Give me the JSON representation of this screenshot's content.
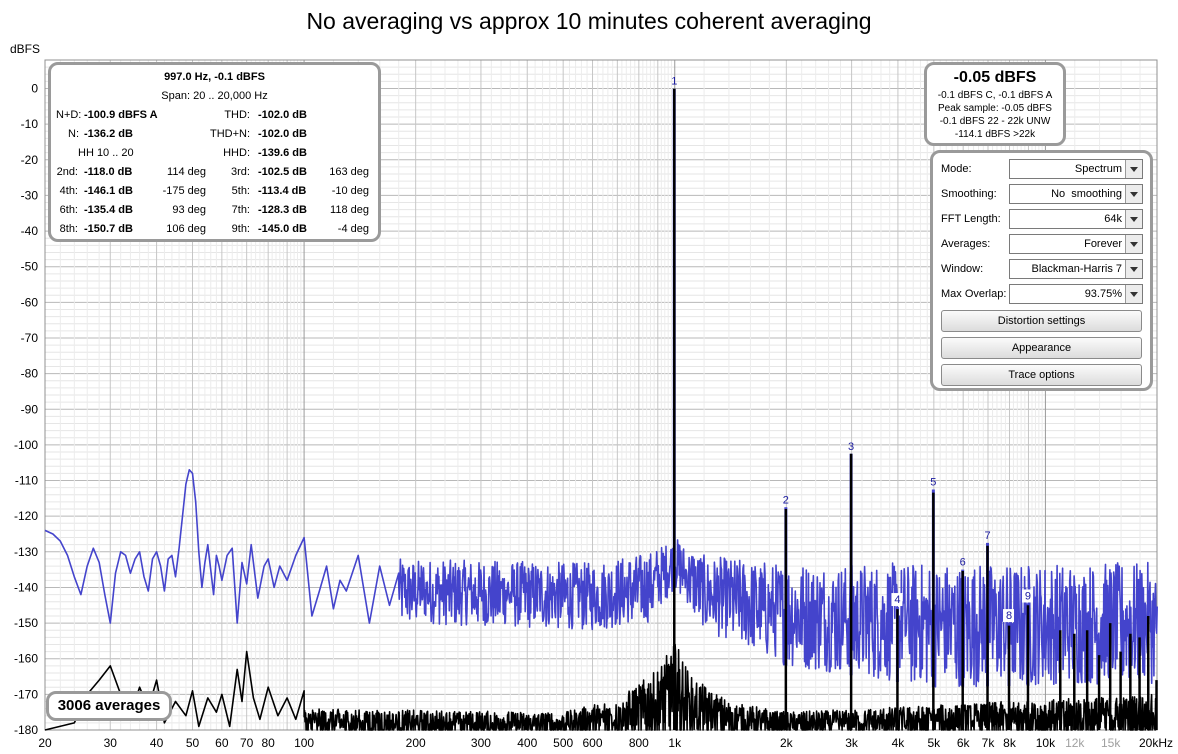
{
  "title": "No averaging vs approx 10 minutes coherent averaging",
  "y_unit": "dBFS",
  "stats": {
    "header1": "997.0 Hz, -0.1 dBFS",
    "header2": "Span: 20 .. 20,000 Hz",
    "nd_label": "N+D:",
    "nd_value": "-100.9 dBFS A",
    "thd_label": "THD:",
    "thd_value": "-102.0 dB",
    "n_label": "N:",
    "n_value": "-136.2 dB",
    "thdn_label": "THD+N:",
    "thdn_value": "-102.0 dB",
    "hh_label": "HH 10 .. 20",
    "hhd_label": "HHD:",
    "hhd_value": "-139.6 dB",
    "harmonics": [
      {
        "label": "2nd:",
        "value": "-118.0 dB",
        "phase": "114 deg"
      },
      {
        "label": "3rd:",
        "value": "-102.5 dB",
        "phase": "163 deg"
      },
      {
        "label": "4th:",
        "value": "-146.1 dB",
        "phase": "-175 deg"
      },
      {
        "label": "5th:",
        "value": "-113.4 dB",
        "phase": "-10 deg"
      },
      {
        "label": "6th:",
        "value": "-135.4 dB",
        "phase": "93 deg"
      },
      {
        "label": "7th:",
        "value": "-128.3 dB",
        "phase": "118 deg"
      },
      {
        "label": "8th:",
        "value": "-150.7 dB",
        "phase": "106 deg"
      },
      {
        "label": "9th:",
        "value": "-145.0 dB",
        "phase": "-4 deg"
      }
    ]
  },
  "peak": {
    "value": "-0.05 dBFS",
    "line1": "-0.1 dBFS C, -0.1 dBFS A",
    "line2": "Peak sample: -0.05 dBFS",
    "line3": "-0.1 dBFS 22 - 22k UNW",
    "line4": "-114.1 dBFS >22k"
  },
  "controls": {
    "mode": {
      "label": "Mode:",
      "value": "Spectrum"
    },
    "smoothing": {
      "label": "Smoothing:",
      "value": "No  smoothing"
    },
    "fft_length": {
      "label": "FFT Length:",
      "value": "64k"
    },
    "averages": {
      "label": "Averages:",
      "value": "Forever"
    },
    "window": {
      "label": "Window:",
      "value": "Blackman-Harris 7"
    },
    "max_overlap": {
      "label": "Max Overlap:",
      "value": "93.75%"
    },
    "distortion_button": "Distortion settings",
    "appearance_button": "Appearance",
    "trace_button": "Trace options"
  },
  "averages_badge": "3006 averages",
  "colors": {
    "no_averaging_trace": "#4444cc",
    "averaged_trace": "#000000",
    "harmonic_label": "#1a1aa0",
    "grid_minor": "#e4e4e4",
    "grid_major": "#a0a0a0"
  },
  "chart_data": {
    "type": "line",
    "title": "No averaging vs approx 10 minutes coherent averaging",
    "xlabel": "",
    "ylabel": "dBFS",
    "x_scale": "log",
    "xlim": [
      20,
      20000
    ],
    "ylim": [
      -180,
      8
    ],
    "x_ticks": [
      {
        "v": 20,
        "l": "20"
      },
      {
        "v": 30,
        "l": "30"
      },
      {
        "v": 40,
        "l": "40"
      },
      {
        "v": 50,
        "l": "50"
      },
      {
        "v": 60,
        "l": "60"
      },
      {
        "v": 70,
        "l": "70"
      },
      {
        "v": 80,
        "l": "80"
      },
      {
        "v": 100,
        "l": "100"
      },
      {
        "v": 200,
        "l": "200"
      },
      {
        "v": 300,
        "l": "300"
      },
      {
        "v": 400,
        "l": "400"
      },
      {
        "v": 500,
        "l": "500"
      },
      {
        "v": 600,
        "l": "600"
      },
      {
        "v": 800,
        "l": "800"
      },
      {
        "v": 1000,
        "l": "1k"
      },
      {
        "v": 2000,
        "l": "2k"
      },
      {
        "v": 3000,
        "l": "3k"
      },
      {
        "v": 4000,
        "l": "4k"
      },
      {
        "v": 5000,
        "l": "5k"
      },
      {
        "v": 6000,
        "l": "6k"
      },
      {
        "v": 7000,
        "l": "7k"
      },
      {
        "v": 8000,
        "l": "8k"
      },
      {
        "v": 10000,
        "l": "10k"
      },
      {
        "v": 12000,
        "l": "12k"
      },
      {
        "v": 15000,
        "l": "15k"
      },
      {
        "v": 20000,
        "l": "20kHz"
      }
    ],
    "grey_x_ticks": [
      12000,
      15000
    ],
    "y_ticks": [
      0,
      -10,
      -20,
      -30,
      -40,
      -50,
      -60,
      -70,
      -80,
      -90,
      -100,
      -110,
      -120,
      -130,
      -140,
      -150,
      -160,
      -170,
      -180
    ],
    "grid": true,
    "series": [
      {
        "role": "no_averaging",
        "low_freq_points": [
          [
            20,
            -124
          ],
          [
            21,
            -125
          ],
          [
            22,
            -127
          ],
          [
            23,
            -131
          ],
          [
            24,
            -137
          ],
          [
            25,
            -142
          ],
          [
            26,
            -134
          ],
          [
            27,
            -129
          ],
          [
            28,
            -133
          ],
          [
            29,
            -142
          ],
          [
            30,
            -150
          ],
          [
            31,
            -136
          ],
          [
            32,
            -130
          ],
          [
            33,
            -131
          ],
          [
            34,
            -136
          ],
          [
            35,
            -132
          ],
          [
            36,
            -130
          ],
          [
            37,
            -137
          ],
          [
            38,
            -141
          ],
          [
            39,
            -132
          ],
          [
            40,
            -130
          ],
          [
            41,
            -134
          ],
          [
            42,
            -141
          ],
          [
            43,
            -132
          ],
          [
            44,
            -131
          ],
          [
            45,
            -137
          ],
          [
            46,
            -129
          ],
          [
            47,
            -120
          ],
          [
            48,
            -111
          ],
          [
            49,
            -107
          ],
          [
            50,
            -108
          ],
          [
            51,
            -116
          ],
          [
            52,
            -130
          ],
          [
            53,
            -140
          ],
          [
            54,
            -133
          ],
          [
            55,
            -128
          ],
          [
            56,
            -135
          ],
          [
            57,
            -142
          ],
          [
            58,
            -131
          ],
          [
            59,
            -134
          ],
          [
            60,
            -138
          ],
          [
            62,
            -131
          ],
          [
            64,
            -129
          ],
          [
            66,
            -150
          ],
          [
            68,
            -133
          ],
          [
            70,
            -139
          ],
          [
            72,
            -128
          ],
          [
            75,
            -143
          ],
          [
            78,
            -134
          ],
          [
            80,
            -132
          ],
          [
            83,
            -140
          ],
          [
            86,
            -134
          ],
          [
            90,
            -138
          ],
          [
            95,
            -131
          ],
          [
            100,
            -126
          ],
          [
            105,
            -148
          ],
          [
            110,
            -141
          ],
          [
            115,
            -134
          ],
          [
            120,
            -146
          ],
          [
            125,
            -138
          ],
          [
            130,
            -141
          ],
          [
            140,
            -131
          ],
          [
            150,
            -150
          ],
          [
            160,
            -134
          ],
          [
            170,
            -145
          ],
          [
            180,
            -136
          ]
        ],
        "noise_upper": [
          [
            180,
            -132
          ],
          [
            600,
            -133
          ],
          [
            850,
            -130
          ],
          [
            1000,
            -126
          ],
          [
            1200,
            -131
          ],
          [
            2000,
            -133
          ],
          [
            5000,
            -133
          ],
          [
            20000,
            -133
          ]
        ],
        "noise_lower": [
          [
            180,
            -150
          ],
          [
            600,
            -152
          ],
          [
            850,
            -150
          ],
          [
            1000,
            -140
          ],
          [
            1200,
            -152
          ],
          [
            2000,
            -162
          ],
          [
            5000,
            -168
          ],
          [
            20000,
            -167
          ]
        ],
        "peaks": [
          [
            997,
            -0.1
          ],
          [
            1994,
            -117.5
          ],
          [
            2991,
            -102.5
          ],
          [
            3988,
            -145.5
          ],
          [
            4985,
            -112.5
          ],
          [
            5982,
            -135.0
          ],
          [
            6979,
            -127.5
          ],
          [
            7976,
            -150.0
          ],
          [
            8973,
            -144.5
          ]
        ]
      },
      {
        "role": "averaged",
        "low_freq_points": [
          [
            20,
            -182
          ],
          [
            24,
            -178
          ],
          [
            26,
            -170
          ],
          [
            28,
            -166
          ],
          [
            30,
            -162
          ],
          [
            32,
            -170
          ],
          [
            34,
            -176
          ],
          [
            36,
            -168
          ],
          [
            38,
            -174
          ],
          [
            40,
            -166
          ],
          [
            42,
            -178
          ],
          [
            45,
            -172
          ],
          [
            48,
            -176
          ],
          [
            50,
            -169
          ],
          [
            52,
            -179
          ],
          [
            55,
            -171
          ],
          [
            58,
            -175
          ],
          [
            60,
            -170
          ],
          [
            63,
            -179
          ],
          [
            66,
            -163
          ],
          [
            68,
            -172
          ],
          [
            70,
            -158
          ],
          [
            73,
            -171
          ],
          [
            76,
            -177
          ],
          [
            80,
            -168
          ],
          [
            85,
            -176
          ],
          [
            90,
            -171
          ],
          [
            95,
            -177
          ],
          [
            100,
            -169
          ]
        ],
        "noise_upper": [
          [
            100,
            -174
          ],
          [
            500,
            -175
          ],
          [
            700,
            -171
          ],
          [
            900,
            -163
          ],
          [
            1000,
            -155
          ],
          [
            1100,
            -165
          ],
          [
            1400,
            -172
          ],
          [
            2000,
            -175
          ],
          [
            5000,
            -173
          ],
          [
            20000,
            -170
          ]
        ],
        "noise_lower": [
          [
            100,
            -182
          ],
          [
            20000,
            -182
          ]
        ],
        "peaks": [
          [
            997,
            -0.05
          ],
          [
            1994,
            -118.0
          ],
          [
            2991,
            -102.5
          ],
          [
            3988,
            -146.1
          ],
          [
            4985,
            -113.4
          ],
          [
            5982,
            -135.4
          ],
          [
            6979,
            -128.3
          ],
          [
            7976,
            -150.7
          ],
          [
            8973,
            -145.0
          ],
          [
            10967,
            -152
          ],
          [
            11964,
            -153
          ],
          [
            12961,
            -152
          ],
          [
            13958,
            -159
          ],
          [
            14955,
            -150
          ],
          [
            15952,
            -158
          ],
          [
            16949,
            -153
          ],
          [
            17946,
            -154
          ],
          [
            18943,
            -148
          ],
          [
            19940,
            -166
          ]
        ]
      }
    ],
    "harmonic_markers": [
      {
        "label": "1",
        "x": 997,
        "y": 0
      },
      {
        "label": "2",
        "x": 1994,
        "y": -117.5
      },
      {
        "label": "3",
        "x": 2991,
        "y": -102.5
      },
      {
        "label": "4",
        "x": 3988,
        "y": -145.5
      },
      {
        "label": "5",
        "x": 4985,
        "y": -112.5
      },
      {
        "label": "6",
        "x": 5982,
        "y": -135.0
      },
      {
        "label": "7",
        "x": 6979,
        "y": -127.5
      },
      {
        "label": "8",
        "x": 7976,
        "y": -150.0
      },
      {
        "label": "9",
        "x": 8973,
        "y": -144.5
      }
    ]
  }
}
